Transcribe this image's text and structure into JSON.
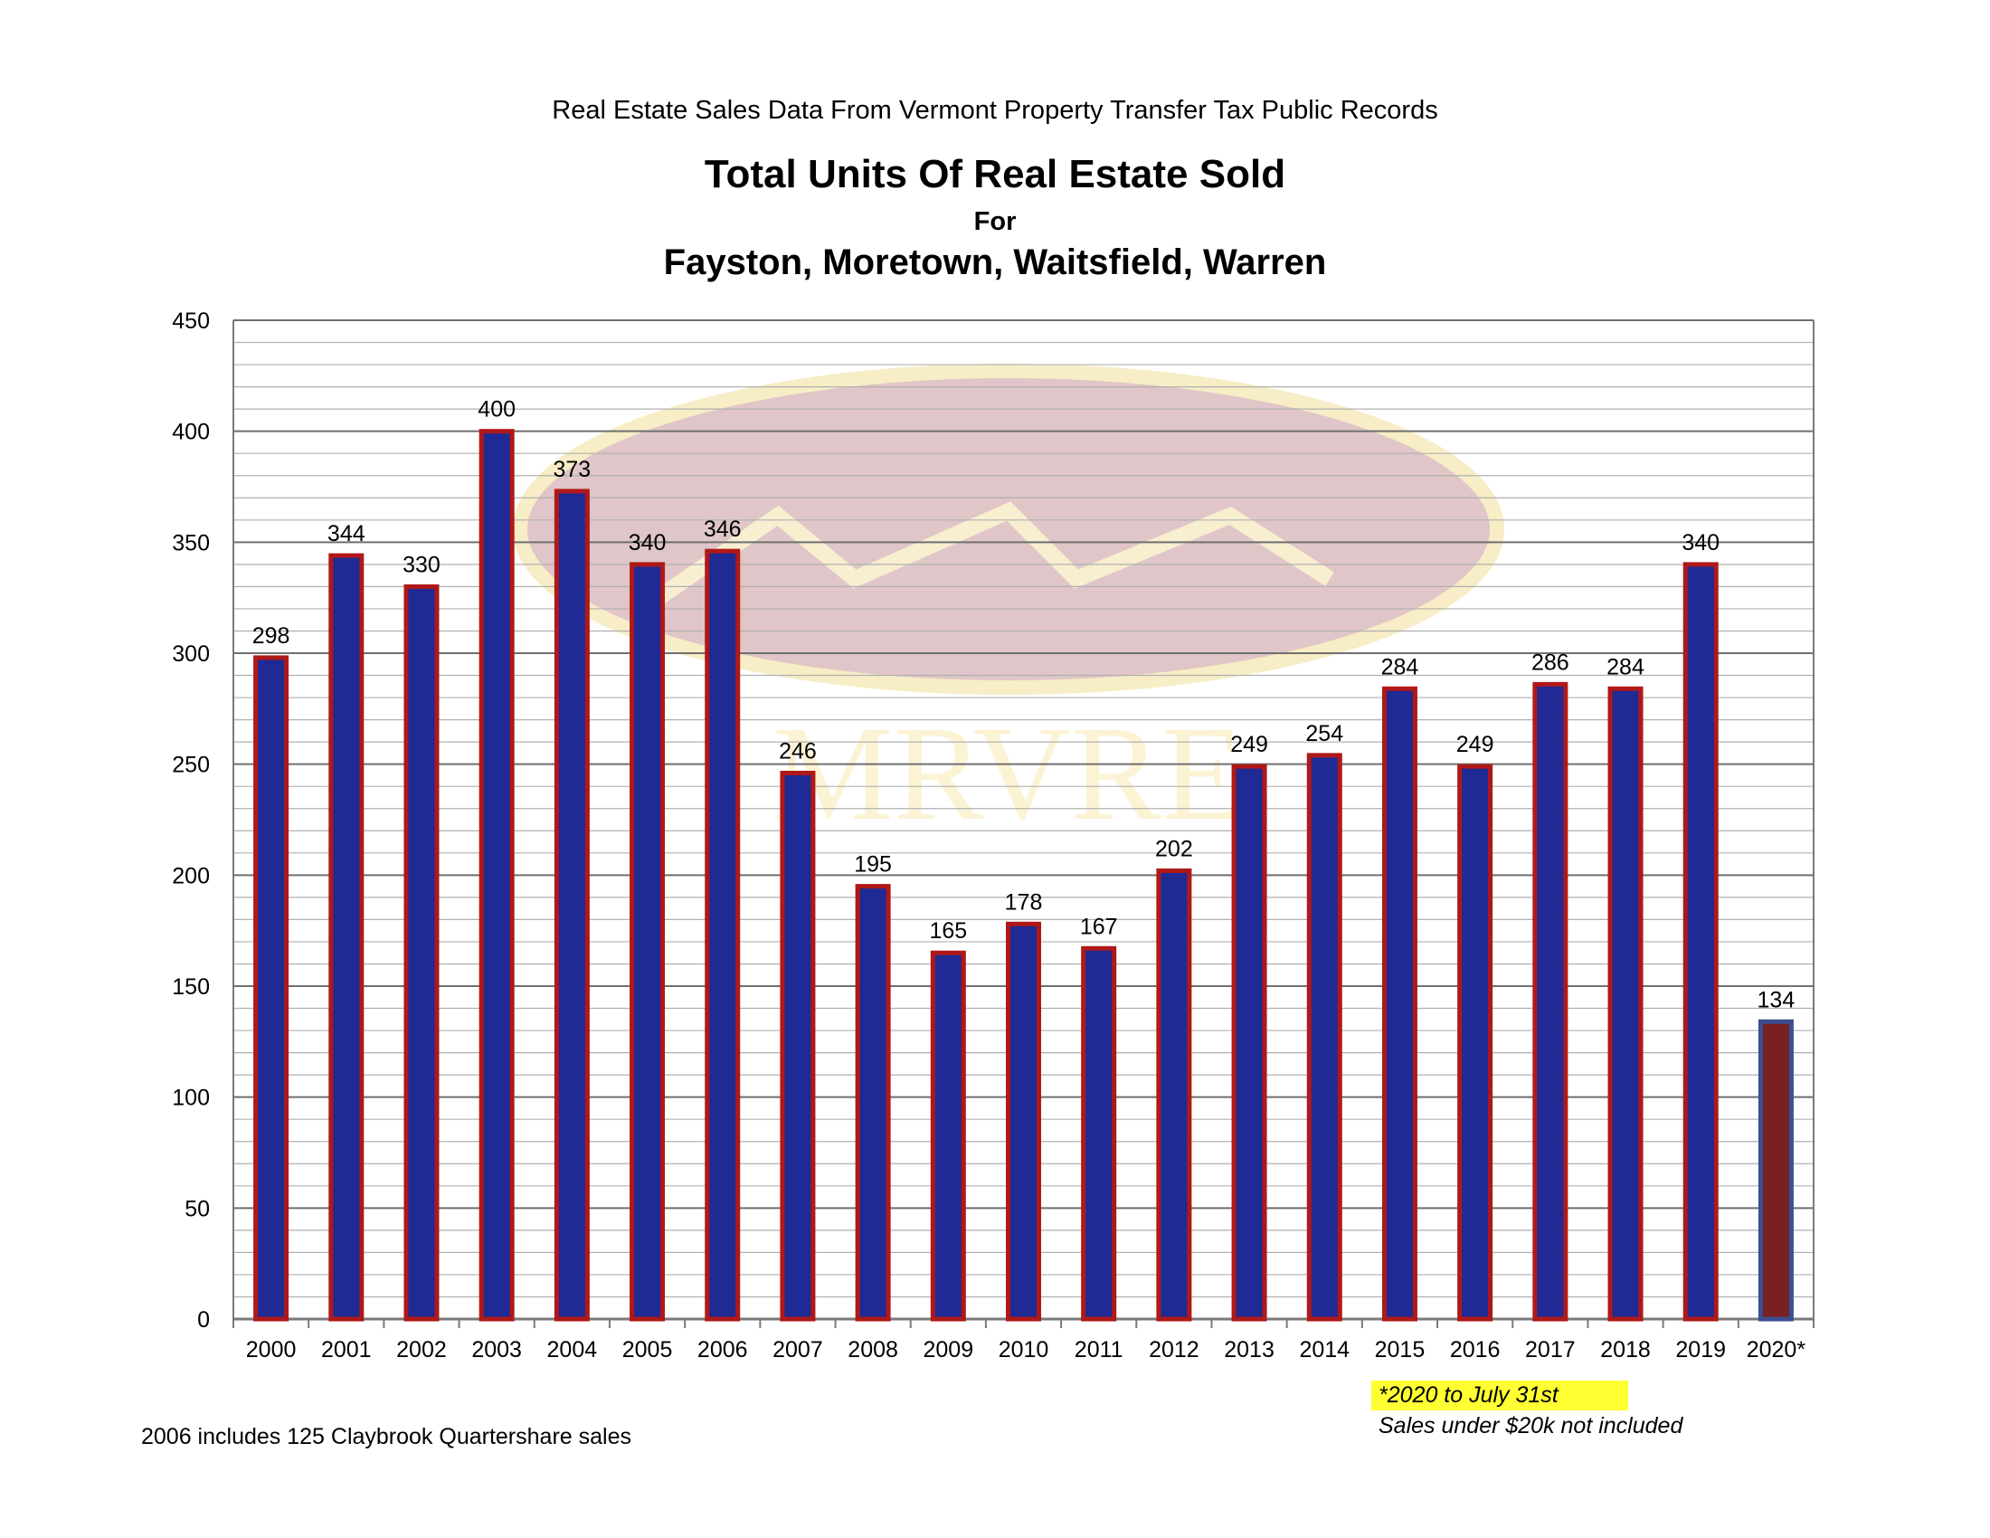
{
  "header": {
    "source_caption": "Real Estate Sales Data From Vermont Property Transfer Tax Public Records",
    "title": "Total Units Of Real Estate Sold",
    "for_text": "For",
    "towns": "Fayston, Moretown, Waitsfield, Warren"
  },
  "watermark": {
    "text": "MRVRE",
    "color": "#d9b8bb",
    "text_color": "#fbf2d0"
  },
  "colors": {
    "bar_fill": "#1f2a94",
    "bar_outline": "#b01818",
    "highlight_fill": "#7a2020",
    "highlight_outline": "#3a4f8f",
    "grid": "#9a9a9a"
  },
  "chart_data": {
    "type": "bar",
    "title": "Total Units Of Real Estate Sold",
    "xlabel": "",
    "ylabel": "",
    "ylim": [
      0,
      450
    ],
    "yticks": [
      0,
      50,
      100,
      150,
      200,
      250,
      300,
      350,
      400,
      450
    ],
    "grid": true,
    "categories": [
      "2000",
      "2001",
      "2002",
      "2003",
      "2004",
      "2005",
      "2006",
      "2007",
      "2008",
      "2009",
      "2010",
      "2011",
      "2012",
      "2013",
      "2014",
      "2015",
      "2016",
      "2017",
      "2018",
      "2019",
      "2020*"
    ],
    "values": [
      298,
      344,
      330,
      400,
      373,
      340,
      346,
      246,
      195,
      165,
      178,
      167,
      202,
      249,
      254,
      284,
      249,
      286,
      284,
      340,
      134
    ],
    "data_labels": [
      "298",
      "344",
      "330",
      "400",
      "373",
      "340",
      "346",
      "246",
      "195",
      "165",
      "178",
      "167",
      "202",
      "249",
      "254",
      "284",
      "249",
      "286",
      "284",
      "340",
      "134"
    ]
  },
  "notes": {
    "left_footnote": "2006 includes 125 Claybrook Quartershare sales",
    "highlight_note": "*2020 to July 31st",
    "second_note": "Sales under $20k not included"
  }
}
